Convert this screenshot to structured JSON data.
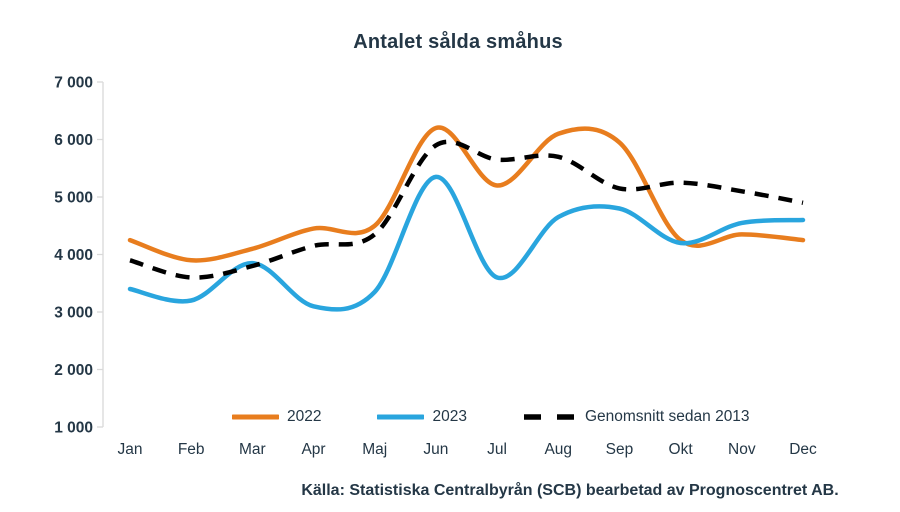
{
  "title": "Antalet sålda småhus",
  "source": "Källa: Statistiska Centralbyrån (SCB) bearbetad av Prognoscentret AB.",
  "colors": {
    "text": "#243746",
    "axis": "#d9d9d9",
    "series_2022": "#e87d1e",
    "series_2023": "#29a5de",
    "series_avg": "#000000"
  },
  "chart_data": {
    "type": "line",
    "title": "Antalet sålda småhus",
    "smooth": true,
    "grid": false,
    "legend_position": "bottom-center",
    "categories": [
      "Jan",
      "Feb",
      "Mar",
      "Apr",
      "Maj",
      "Jun",
      "Jul",
      "Aug",
      "Sep",
      "Okt",
      "Nov",
      "Dec"
    ],
    "series": [
      {
        "name": "2022",
        "color": "#e87d1e",
        "style": "solid",
        "values": [
          4250,
          3900,
          4100,
          4450,
          4500,
          6200,
          5200,
          6100,
          5950,
          4250,
          4350,
          4250
        ]
      },
      {
        "name": "2023",
        "color": "#29a5de",
        "style": "solid",
        "values": [
          3400,
          3200,
          3850,
          3100,
          3350,
          5350,
          3600,
          4650,
          4800,
          4200,
          4550,
          4600
        ]
      },
      {
        "name": "Genomsnitt sedan 2013",
        "color": "#000000",
        "style": "dashed",
        "values": [
          3900,
          3600,
          3800,
          4150,
          4350,
          5900,
          5650,
          5700,
          5150,
          5250,
          5100,
          4900
        ]
      }
    ],
    "y_axis": {
      "min": 1000,
      "max": 7000,
      "step": 1000,
      "tick_labels": [
        "1 000",
        "2 000",
        "3 000",
        "4 000",
        "5 000",
        "6 000",
        "7 000"
      ]
    }
  }
}
